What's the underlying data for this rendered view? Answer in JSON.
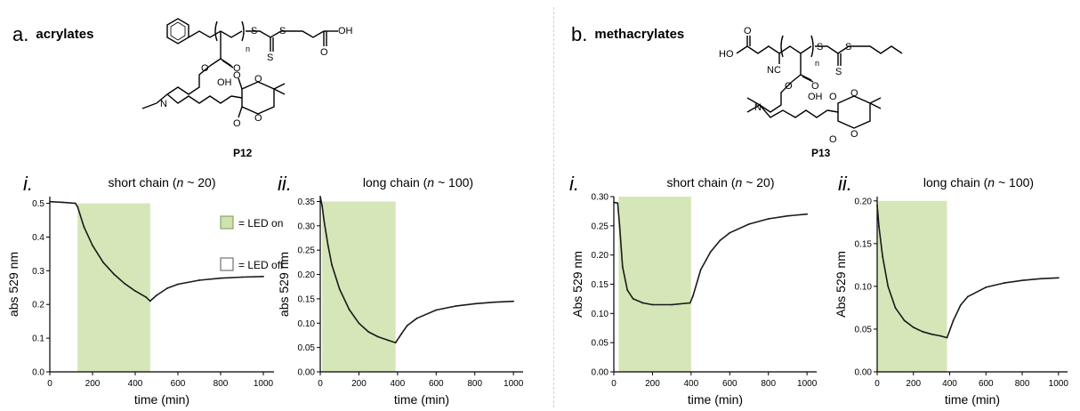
{
  "panels": {
    "a": {
      "letter": "a.",
      "title": "acrylates",
      "compound": "P12"
    },
    "b": {
      "letter": "b.",
      "title": "methacrylates",
      "compound": "P13"
    }
  },
  "structure_atoms": {
    "s": "S",
    "o": "O",
    "oh": "OH",
    "ho": "HO",
    "n": "N",
    "nc": "NC",
    "sub_n": "n"
  },
  "legend": {
    "on": "= LED on",
    "off": "= LED off",
    "on_color": "#cfe2b0",
    "on_border": "#7a9a4a"
  },
  "colors": {
    "led_fill": "#d5e6b8",
    "trace": "#1a1a1a"
  },
  "chart_data": [
    {
      "type": "line",
      "roman": "i.",
      "title_pre": "short chain (",
      "title_var": "n",
      "title_post": " ~ 20)",
      "xlabel": "time (min)",
      "ylabel": "abs 529 nm",
      "xlim": [
        0,
        1050
      ],
      "ylim": [
        0,
        0.52
      ],
      "xticks": [
        "0",
        "200",
        "400",
        "600",
        "800",
        "1000"
      ],
      "yticks": [
        "0.0",
        "0.1",
        "0.2",
        "0.3",
        "0.4",
        "0.5"
      ],
      "led_on": [
        130,
        470
      ],
      "x": [
        0,
        60,
        120,
        130,
        160,
        200,
        250,
        300,
        350,
        400,
        450,
        470,
        500,
        550,
        600,
        700,
        800,
        900,
        1000
      ],
      "y": [
        0.505,
        0.503,
        0.5,
        0.49,
        0.43,
        0.375,
        0.325,
        0.29,
        0.262,
        0.24,
        0.222,
        0.21,
        0.227,
        0.248,
        0.26,
        0.272,
        0.278,
        0.281,
        0.283
      ]
    },
    {
      "type": "line",
      "roman": "ii.",
      "title_pre": "long chain (",
      "title_var": "n",
      "title_post": " ~ 100)",
      "xlabel": "time (min)",
      "ylabel": "abs 529 nm",
      "xlim": [
        0,
        1050
      ],
      "ylim": [
        0,
        0.36
      ],
      "xticks": [
        "0",
        "200",
        "400",
        "600",
        "800",
        "1000"
      ],
      "yticks": [
        "0.00",
        "0.05",
        "0.10",
        "0.15",
        "0.20",
        "0.25",
        "0.30",
        "0.35"
      ],
      "led_on": [
        10,
        390
      ],
      "x": [
        0,
        10,
        20,
        40,
        60,
        100,
        150,
        200,
        250,
        300,
        350,
        390,
        420,
        450,
        500,
        600,
        700,
        800,
        900,
        1000
      ],
      "y": [
        0.36,
        0.34,
        0.31,
        0.26,
        0.22,
        0.17,
        0.128,
        0.1,
        0.082,
        0.072,
        0.065,
        0.06,
        0.078,
        0.095,
        0.11,
        0.127,
        0.135,
        0.14,
        0.143,
        0.145
      ]
    },
    {
      "type": "line",
      "roman": "i.",
      "title_pre": "short chain (",
      "title_var": "n",
      "title_post": " ~ 20)",
      "xlabel": "time (min)",
      "ylabel": "Abs 529 nm",
      "xlim": [
        0,
        1050
      ],
      "ylim": [
        0,
        0.3
      ],
      "xticks": [
        "0",
        "200",
        "400",
        "600",
        "800",
        "1000"
      ],
      "yticks": [
        "0.00",
        "0.05",
        "0.10",
        "0.15",
        "0.20",
        "0.25",
        "0.30"
      ],
      "led_on": [
        25,
        400
      ],
      "x": [
        0,
        20,
        30,
        45,
        70,
        100,
        150,
        200,
        300,
        395,
        410,
        450,
        500,
        550,
        600,
        700,
        800,
        900,
        1000
      ],
      "y": [
        0.29,
        0.289,
        0.25,
        0.18,
        0.14,
        0.125,
        0.118,
        0.115,
        0.115,
        0.118,
        0.13,
        0.175,
        0.205,
        0.225,
        0.238,
        0.253,
        0.262,
        0.267,
        0.27
      ]
    },
    {
      "type": "line",
      "roman": "ii.",
      "title_pre": "long chain (",
      "title_var": "n",
      "title_post": " ~ 100)",
      "xlabel": "time (min)",
      "ylabel": "Abs 529 nm",
      "xlim": [
        0,
        1050
      ],
      "ylim": [
        0,
        0.205
      ],
      "xticks": [
        "0",
        "200",
        "400",
        "600",
        "800",
        "1000"
      ],
      "yticks": [
        "0.00",
        "0.05",
        "0.10",
        "0.15",
        "0.20"
      ],
      "led_on": [
        0,
        385
      ],
      "x": [
        0,
        10,
        30,
        60,
        100,
        150,
        200,
        250,
        300,
        350,
        385,
        420,
        460,
        500,
        600,
        700,
        800,
        900,
        1000
      ],
      "y": [
        0.195,
        0.17,
        0.135,
        0.1,
        0.075,
        0.06,
        0.052,
        0.047,
        0.044,
        0.042,
        0.04,
        0.06,
        0.078,
        0.088,
        0.099,
        0.104,
        0.107,
        0.109,
        0.11
      ]
    }
  ]
}
